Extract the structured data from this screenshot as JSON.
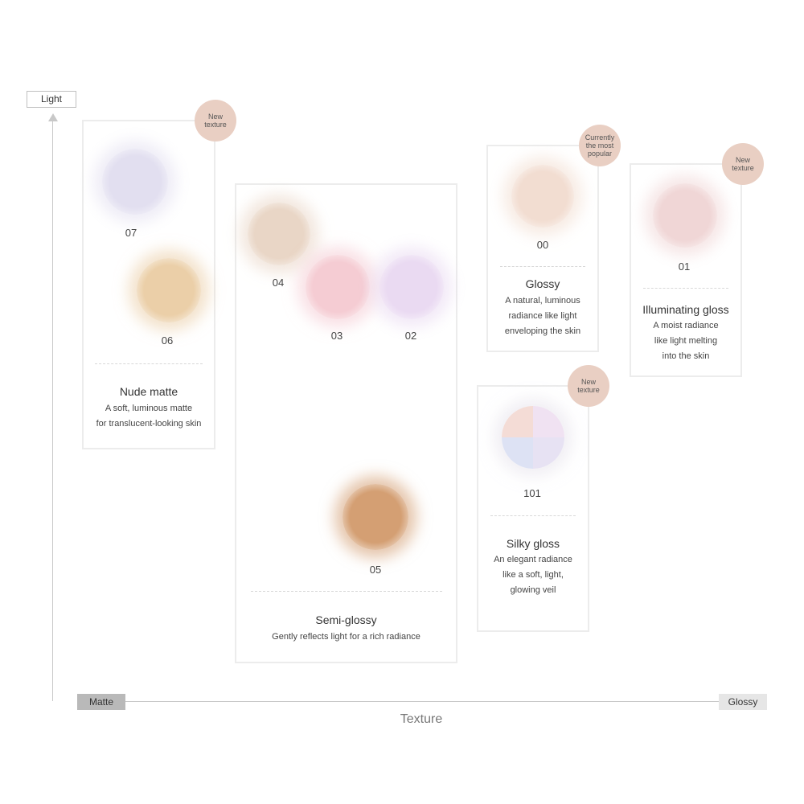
{
  "axes": {
    "y_label": "Light",
    "x_min_label": "Matte",
    "x_max_label": "Glossy",
    "x_title": "Texture"
  },
  "colors": {
    "badge": "#e9cfc3",
    "box_border": "#ececec",
    "matte_pill": "#b9b9b9",
    "glossy_pill": "#e6e6e6"
  },
  "groups": {
    "nude_matte": {
      "name": "Nude matte",
      "desc_line1": "A soft, luminous matte",
      "desc_line2": "for translucent-looking skin",
      "badge": "New\ntexture"
    },
    "semi_glossy": {
      "name": "Semi-glossy",
      "desc_line1": "Gently reflects light for a rich radiance"
    },
    "glossy": {
      "name": "Glossy",
      "desc_line1": "A natural, luminous",
      "desc_line2": "radiance like light",
      "desc_line3": "enveloping the skin",
      "badge": "Currently\nthe most\npopular"
    },
    "illuminating_gloss": {
      "name": "Illuminating gloss",
      "desc_line1": "A moist radiance",
      "desc_line2": "like light melting",
      "desc_line3": "into the skin",
      "badge": "New\ntexture"
    },
    "silky_gloss": {
      "name": "Silky gloss",
      "desc_line1": "An elegant radiance",
      "desc_line2": "like a soft, light,",
      "desc_line3": "glowing veil",
      "badge": "New\ntexture"
    }
  },
  "shades": {
    "s07": {
      "code": "07",
      "color": "#e2dff0"
    },
    "s06": {
      "code": "06",
      "color": "#ebcfa8"
    },
    "s04": {
      "code": "04",
      "color": "#e9d6c6"
    },
    "s03": {
      "code": "03",
      "color": "#f5ccd3"
    },
    "s02": {
      "code": "02",
      "color": "#eadaf2"
    },
    "s05": {
      "code": "05",
      "color": "#d49f73"
    },
    "s00": {
      "code": "00",
      "color": "#f2ddd1"
    },
    "s01": {
      "code": "01",
      "color": "#f0d6d6"
    },
    "s101": {
      "code": "101",
      "q1": "#f4dcd6",
      "q2": "#f0e2f2",
      "q3": "#dde2f4",
      "q4": "#e7e2f3"
    }
  }
}
